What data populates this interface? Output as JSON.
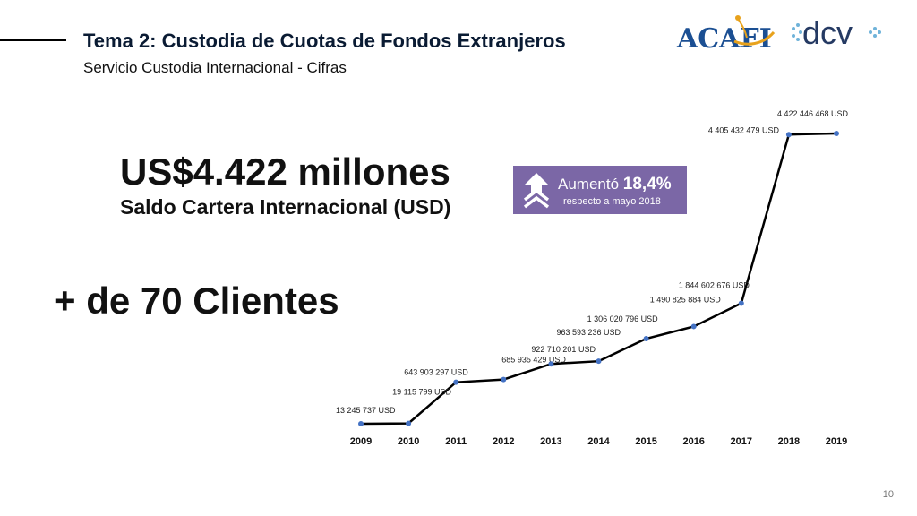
{
  "header": {
    "title": "Tema 2: Custodia de Cuotas de Fondos Extranjeros",
    "subtitle": "Servicio Custodia Internacional - Cifras"
  },
  "logos": {
    "acafi": "ACAFI",
    "dcv": "dcv"
  },
  "highlight": {
    "amount": "US$4.422 millones",
    "amount_label": "Saldo Cartera Internacional (USD)",
    "clients": "+ de 70 Clientes"
  },
  "badge": {
    "prefix": "Aumentó",
    "value": "18,4%",
    "note": "respecto a mayo 2018",
    "color": "#7b67a6"
  },
  "chart_data": {
    "type": "line",
    "x": [
      "2009",
      "2010",
      "2011",
      "2012",
      "2013",
      "2014",
      "2015",
      "2016",
      "2017",
      "2018",
      "2019"
    ],
    "series": [
      {
        "values": [
          13245737,
          19115799,
          643903297,
          685935429,
          922710201,
          963593236,
          1306020796,
          1490825884,
          1844602676,
          4405432479,
          4422446468
        ],
        "labels": [
          "13 245 737 USD",
          "19 115 799 USD",
          "643 903 297 USD",
          "685 935 429 USD",
          "922 710 201 USD",
          "963 593 236 USD",
          "1 306 020 796 USD",
          "1 490 825 884 USD",
          "1 844 602 676 USD",
          "4 405 432 479 USD",
          "4 422 446 468 USD"
        ]
      }
    ],
    "line_color": "#000000",
    "marker_color": "#4472c4",
    "grid": false
  },
  "footer": {
    "page_number": "10"
  }
}
